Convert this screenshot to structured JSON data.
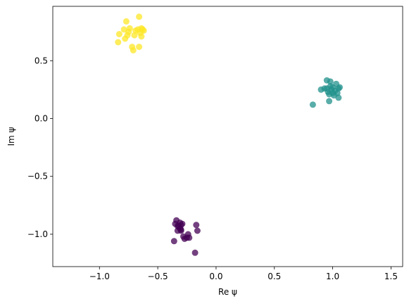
{
  "chart_data": {
    "type": "scatter",
    "xlabel": "Re ψ",
    "ylabel": "Im ψ",
    "xlim": [
      -1.4,
      1.6
    ],
    "ylim": [
      -1.28,
      0.97
    ],
    "xticks": [
      -1.0,
      -0.5,
      0.0,
      0.5,
      1.0,
      1.5
    ],
    "xtick_labels": [
      "−1.0",
      "−0.5",
      "0.0",
      "0.5",
      "1.0",
      "1.5"
    ],
    "yticks": [
      -1.0,
      -0.5,
      0.0,
      0.5
    ],
    "ytick_labels": [
      "−1.0",
      "−0.5",
      "0.0",
      "0.5"
    ],
    "grid": false,
    "series": [
      {
        "color": "#fde725",
        "points": [
          [
            -0.84,
            0.66
          ],
          [
            -0.83,
            0.73
          ],
          [
            -0.79,
            0.77
          ],
          [
            -0.78,
            0.69
          ],
          [
            -0.77,
            0.84
          ],
          [
            -0.76,
            0.72
          ],
          [
            -0.75,
            0.75
          ],
          [
            -0.74,
            0.78
          ],
          [
            -0.72,
            0.62
          ],
          [
            -0.71,
            0.59
          ],
          [
            -0.7,
            0.72
          ],
          [
            -0.69,
            0.76
          ],
          [
            -0.67,
            0.77
          ],
          [
            -0.66,
            0.88
          ],
          [
            -0.66,
            0.62
          ],
          [
            -0.65,
            0.74
          ],
          [
            -0.64,
            0.78
          ],
          [
            -0.64,
            0.71
          ],
          [
            -0.63,
            0.77
          ],
          [
            -0.62,
            0.76
          ]
        ]
      },
      {
        "color": "#21918c",
        "points": [
          [
            0.83,
            0.12
          ],
          [
            0.9,
            0.25
          ],
          [
            0.93,
            0.26
          ],
          [
            0.95,
            0.33
          ],
          [
            0.96,
            0.23
          ],
          [
            0.97,
            0.15
          ],
          [
            0.97,
            0.21
          ],
          [
            0.98,
            0.32
          ],
          [
            0.98,
            0.28
          ],
          [
            0.99,
            0.25
          ],
          [
            1.0,
            0.27
          ],
          [
            1.01,
            0.2
          ],
          [
            1.02,
            0.24
          ],
          [
            1.03,
            0.3
          ],
          [
            1.04,
            0.22
          ],
          [
            1.05,
            0.26
          ],
          [
            1.05,
            0.18
          ],
          [
            1.06,
            0.27
          ],
          [
            0.95,
            0.26
          ],
          [
            1.0,
            0.22
          ]
        ]
      },
      {
        "color": "#440154",
        "points": [
          [
            -0.36,
            -1.06
          ],
          [
            -0.35,
            -0.91
          ],
          [
            -0.34,
            -0.88
          ],
          [
            -0.33,
            -0.97
          ],
          [
            -0.32,
            -0.93
          ],
          [
            -0.31,
            -0.95
          ],
          [
            -0.31,
            -0.9
          ],
          [
            -0.3,
            -0.92
          ],
          [
            -0.3,
            -0.96
          ],
          [
            -0.29,
            -0.91
          ],
          [
            -0.28,
            -1.02
          ],
          [
            -0.27,
            -1.04
          ],
          [
            -0.25,
            -1.03
          ],
          [
            -0.24,
            -1.0
          ],
          [
            -0.23,
            -1.03
          ],
          [
            -0.18,
            -1.16
          ],
          [
            -0.17,
            -0.92
          ],
          [
            -0.16,
            -0.97
          ],
          [
            -0.33,
            -0.93
          ],
          [
            -0.3,
            -0.97
          ]
        ]
      }
    ]
  }
}
